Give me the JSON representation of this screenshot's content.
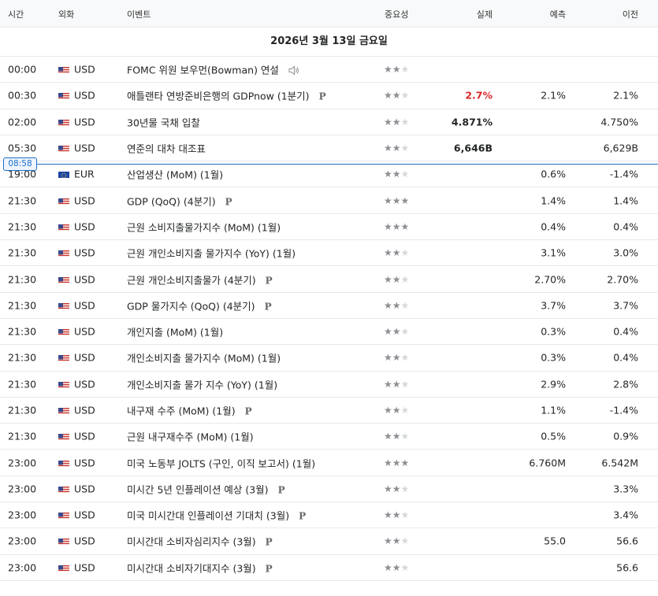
{
  "header": {
    "time": "시간",
    "currency": "외화",
    "event": "이벤트",
    "importance": "중요성",
    "actual": "실제",
    "forecast": "예측",
    "previous": "이전"
  },
  "date_label": "2026년 3월 13일 금요일",
  "now_marker": "08:58",
  "colors": {
    "actual_negative": "#dc2a2a",
    "now_line": "#1e6ec8"
  },
  "events": [
    {
      "time": "00:00",
      "flag": "us-flag-icon",
      "currency": "USD",
      "event": "FOMC 위원 보우먼(Bowman) 연설",
      "speech": true,
      "prelim": false,
      "importance": 2,
      "actual": "",
      "actual_color": "#232526",
      "forecast": "",
      "previous": ""
    },
    {
      "time": "00:30",
      "flag": "us-flag-icon",
      "currency": "USD",
      "event": "애틀랜타 연방준비은행의 GDPnow (1분기)",
      "speech": false,
      "prelim": true,
      "importance": 2,
      "actual": "2.7%",
      "actual_color": "#dc2a2a",
      "forecast": "2.1%",
      "previous": "2.1%"
    },
    {
      "time": "02:00",
      "flag": "us-flag-icon",
      "currency": "USD",
      "event": "30년물 국채 입찰",
      "speech": false,
      "prelim": false,
      "importance": 2,
      "actual": "4.871%",
      "actual_color": "#232526",
      "forecast": "",
      "previous": "4.750%"
    },
    {
      "time": "05:30",
      "flag": "us-flag-icon",
      "currency": "USD",
      "event": "연준의 대차 대조표",
      "speech": false,
      "prelim": false,
      "importance": 2,
      "actual": "6,646B",
      "actual_color": "#232526",
      "forecast": "",
      "previous": "6,629B"
    },
    {
      "time": "19:00",
      "flag": "eu-flag-icon",
      "currency": "EUR",
      "event": "산업생산 (MoM) (1월)",
      "speech": false,
      "prelim": false,
      "importance": 2,
      "actual": "",
      "actual_color": "#232526",
      "forecast": "0.6%",
      "previous": "-1.4%"
    },
    {
      "time": "21:30",
      "flag": "us-flag-icon",
      "currency": "USD",
      "event": "GDP (QoQ) (4분기)",
      "speech": false,
      "prelim": true,
      "importance": 3,
      "actual": "",
      "actual_color": "#232526",
      "forecast": "1.4%",
      "previous": "1.4%"
    },
    {
      "time": "21:30",
      "flag": "us-flag-icon",
      "currency": "USD",
      "event": "근원 소비지출물가지수 (MoM) (1월)",
      "speech": false,
      "prelim": false,
      "importance": 3,
      "actual": "",
      "actual_color": "#232526",
      "forecast": "0.4%",
      "previous": "0.4%"
    },
    {
      "time": "21:30",
      "flag": "us-flag-icon",
      "currency": "USD",
      "event": "근원 개인소비지출 물가지수 (YoY) (1월)",
      "speech": false,
      "prelim": false,
      "importance": 2,
      "actual": "",
      "actual_color": "#232526",
      "forecast": "3.1%",
      "previous": "3.0%"
    },
    {
      "time": "21:30",
      "flag": "us-flag-icon",
      "currency": "USD",
      "event": "근원 개인소비지출물가 (4분기)",
      "speech": false,
      "prelim": true,
      "importance": 2,
      "actual": "",
      "actual_color": "#232526",
      "forecast": "2.70%",
      "previous": "2.70%"
    },
    {
      "time": "21:30",
      "flag": "us-flag-icon",
      "currency": "USD",
      "event": "GDP 물가지수 (QoQ) (4분기)",
      "speech": false,
      "prelim": true,
      "importance": 2,
      "actual": "",
      "actual_color": "#232526",
      "forecast": "3.7%",
      "previous": "3.7%"
    },
    {
      "time": "21:30",
      "flag": "us-flag-icon",
      "currency": "USD",
      "event": "개인지출 (MoM) (1월)",
      "speech": false,
      "prelim": false,
      "importance": 2,
      "actual": "",
      "actual_color": "#232526",
      "forecast": "0.3%",
      "previous": "0.4%"
    },
    {
      "time": "21:30",
      "flag": "us-flag-icon",
      "currency": "USD",
      "event": "개인소비지출 물가지수 (MoM) (1월)",
      "speech": false,
      "prelim": false,
      "importance": 2,
      "actual": "",
      "actual_color": "#232526",
      "forecast": "0.3%",
      "previous": "0.4%"
    },
    {
      "time": "21:30",
      "flag": "us-flag-icon",
      "currency": "USD",
      "event": "개인소비지출 물가 지수 (YoY) (1월)",
      "speech": false,
      "prelim": false,
      "importance": 2,
      "actual": "",
      "actual_color": "#232526",
      "forecast": "2.9%",
      "previous": "2.8%"
    },
    {
      "time": "21:30",
      "flag": "us-flag-icon",
      "currency": "USD",
      "event": "내구재 수주 (MoM) (1월)",
      "speech": false,
      "prelim": true,
      "importance": 2,
      "actual": "",
      "actual_color": "#232526",
      "forecast": "1.1%",
      "previous": "-1.4%"
    },
    {
      "time": "21:30",
      "flag": "us-flag-icon",
      "currency": "USD",
      "event": "근원 내구재수주 (MoM) (1월)",
      "speech": false,
      "prelim": false,
      "importance": 2,
      "actual": "",
      "actual_color": "#232526",
      "forecast": "0.5%",
      "previous": "0.9%"
    },
    {
      "time": "23:00",
      "flag": "us-flag-icon",
      "currency": "USD",
      "event": "미국 노동부 JOLTS (구인, 이직 보고서) (1월)",
      "speech": false,
      "prelim": false,
      "importance": 3,
      "actual": "",
      "actual_color": "#232526",
      "forecast": "6.760M",
      "previous": "6.542M"
    },
    {
      "time": "23:00",
      "flag": "us-flag-icon",
      "currency": "USD",
      "event": "미시간 5년 인플레이션 예상 (3월)",
      "speech": false,
      "prelim": true,
      "importance": 2,
      "actual": "",
      "actual_color": "#232526",
      "forecast": "",
      "previous": "3.3%"
    },
    {
      "time": "23:00",
      "flag": "us-flag-icon",
      "currency": "USD",
      "event": "미국 미시간대 인플레이션 기대치 (3월)",
      "speech": false,
      "prelim": true,
      "importance": 2,
      "actual": "",
      "actual_color": "#232526",
      "forecast": "",
      "previous": "3.4%"
    },
    {
      "time": "23:00",
      "flag": "us-flag-icon",
      "currency": "USD",
      "event": "미시간대 소비자심리지수 (3월)",
      "speech": false,
      "prelim": true,
      "importance": 2,
      "actual": "",
      "actual_color": "#232526",
      "forecast": "55.0",
      "previous": "56.6"
    },
    {
      "time": "23:00",
      "flag": "us-flag-icon",
      "currency": "USD",
      "event": "미시간대 소비자기대지수 (3월)",
      "speech": false,
      "prelim": true,
      "importance": 2,
      "actual": "",
      "actual_color": "#232526",
      "forecast": "",
      "previous": "56.6"
    }
  ],
  "prelim_mark": "P"
}
